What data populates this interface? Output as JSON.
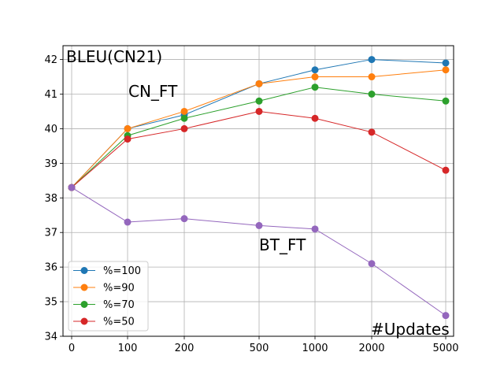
{
  "chart_data": {
    "type": "line",
    "x_labels": [
      "0",
      "100",
      "200",
      "500",
      "1000",
      "2000",
      "5000"
    ],
    "x": [
      0,
      100,
      200,
      500,
      1000,
      2000,
      5000
    ],
    "y_ticks": [
      "34",
      "35",
      "36",
      "37",
      "38",
      "39",
      "40",
      "41",
      "42"
    ],
    "ylim": [
      34,
      42.4
    ],
    "grid": true,
    "legend_position": "lower-left",
    "annotations": {
      "ylabel": "BLEU(CN21)",
      "xlabel": "#Updates",
      "cn_ft": "CN_FT",
      "bt_ft": "BT_FT"
    },
    "series": [
      {
        "name": "%=100",
        "color": "#1f77b4",
        "values": [
          38.3,
          40.0,
          40.4,
          41.3,
          41.7,
          42.0,
          41.9
        ]
      },
      {
        "name": "%=90",
        "color": "#ff7f0e",
        "values": [
          38.3,
          40.0,
          40.5,
          41.3,
          41.5,
          41.5,
          41.7
        ]
      },
      {
        "name": "%=70",
        "color": "#2ca02c",
        "values": [
          38.3,
          39.8,
          40.3,
          40.8,
          41.2,
          41.0,
          40.8
        ]
      },
      {
        "name": "%=50",
        "color": "#d62728",
        "values": [
          38.3,
          39.7,
          40.0,
          40.5,
          40.3,
          39.9,
          38.8
        ]
      },
      {
        "name": "",
        "color": "#9467bd",
        "values": [
          38.3,
          37.3,
          37.4,
          37.2,
          37.1,
          36.1,
          34.6
        ]
      }
    ]
  }
}
